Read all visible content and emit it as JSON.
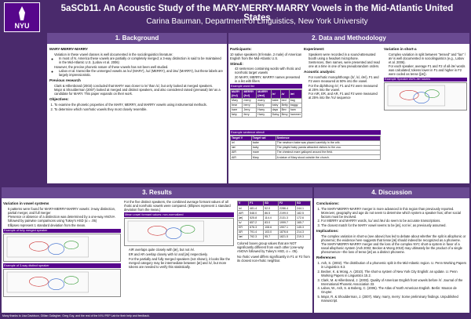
{
  "header": {
    "code": "5aSCb11.",
    "title": "An Acoustic Study of the MARY-MERRY-MARRY Vowels in the Mid-Atlantic United States",
    "author": "Carina Bauman, Department of Linguistics, New York University",
    "logo": "NYU"
  },
  "sections": [
    {
      "title": "1. Background",
      "columns": [
        [
          {
            "heading": "MARY-MERRY-MARRY"
          },
          {
            "items": [
              {
                "text": "Variation in these vowel classes is well documented in the sociolinguistics literature:",
                "sub": [
                  "In most of N. America these vowels are partially or completely merged; a 3-way distinction is said to be maintained in the Mid-Atlantic U.S. (Labov et al. 2006)"
                ]
              },
              {
                "text": "However, the precise phonetic nature of these vowels has not been well studied.",
                "sub": [
                  "Labov et al. transcribe the unmerged vowels as /eɹ/ (MARY), /ɛɹ/ (MERRY), and /æɹ/ (MARRY), but these labels are largely impressionistic."
                ]
              }
            ]
          },
          {
            "heading": "Previous research"
          },
          {
            "items": [
              {
                "text": "Clark & Hillenbrand (2003) concluded that MARY was closer to /e/ than /ɛ/, but only looked at merged speakers."
              },
              {
                "text": "Major & Shoulderman (2007) looked at merged and distinct speakers, and also considered raised (prenasal) /æ/ as a candidate for MARY. This paper expands on their work."
              }
            ]
          },
          {
            "heading": "Objectives:"
          },
          {
            "numbered": [
              "To examine the phonetic properties of the MARY, MERRY, and MARRY vowels using instrumental methods.",
              "To determine which nonrhotic vowels they most closely resemble."
            ]
          }
        ]
      ]
    },
    {
      "title": "2. Data and Methodology",
      "columns": [
        [
          {
            "heading": "Participants:",
            "text": "10 native speakers (8 female, 2 male) of American English from the Mid-Atlantic U.S."
          },
          {
            "heading": "Stimuli:"
          },
          {
            "items": [
              {
                "text": "43 sentences containing words with rhotic and nonrhotic target vowels"
              },
              {
                "text": "20 MARY, MERRY, MARRY names presented in a list with fillers"
              }
            ]
          },
          {
            "table": {
              "caption": "Example word list",
              "header": [
                "MARY (/eɹ/)",
                "MERRY (/ɛɹ/)",
                "MARRY (/æɹ/)",
                "/e/",
                "/ɛ/",
                "/æ/"
              ],
              "rows": [
                [
                  "Mary",
                  "merry",
                  "marry",
                  "babe",
                  "bed",
                  "bag"
                ],
                [
                  "bear",
                  "berry",
                  "Barry",
                  "baby",
                  "Betty",
                  "baggy"
                ],
                [
                  "hare",
                  "Jerry",
                  "Harry",
                  "days",
                  "Bev",
                  "ham"
                ],
                [
                  "fairy",
                  "ferry",
                  "Harry",
                  "Daisy",
                  "Bevy",
                  "hammer"
                ]
              ]
            }
          }
        ],
        [
          {
            "heading": "Experiment:"
          },
          {
            "items": [
              {
                "text": "Speakers were recorded in a sound-attenuated booth using a headset microphone."
              },
              {
                "text": "Sentences, then names, were presented and read one at a time in one of two pseudorandom orders."
              }
            ]
          },
          {
            "heading": "Acoustic analysis:"
          },
          {
            "items": [
              {
                "text": "For nonrhotic monophthongs (/ɪ/, /ɛ/, /æ/), F1 and F2 were measured at 50% into the vowel."
              },
              {
                "text": "For the diphthong /e/, F1 and F2 were measured at 25% into the vowel."
              },
              {
                "text": "For AIR, ER, and AR, F1 and F2 were measured at 25% into the /Vɹ/ sequence"
              }
            ]
          }
        ],
        [
          {
            "heading": "Variation in short-a"
          },
          {
            "items": [
              {
                "text": "Complex variation in split between \"tensed\" and \"lax\" /æ/ is well documented in sociolinguistics (e.g., Labov et al. 2006)."
              },
              {
                "text": "For each speaker, average F1 and F2 of all /æ/ words was calculated; tokens lower in F1 and higher in F2 were coded as tense ([æ])."
              }
            ]
          },
          {
            "figure": "Example Speaker AW's /æ/ tokens"
          }
        ]
      ],
      "wide": [
        {
          "table": {
            "caption": "Example sentence stimuli",
            "header": [
              "Target V",
              "Target wd",
              "Sentence"
            ],
            "rows": [
              [
                "/e/",
                "babe",
                "The newborn babe was placed carefully in the crib."
              ],
              [
                "/æ/",
                "baby",
                "The playful baby panda attracted visitors to the zoo."
              ],
              [
                "AIR",
                "mare",
                "The chestnut mare galloped around the field."
              ],
              [
                "AIR",
                "Mary",
                "A statue of Mary stood outside the church."
              ]
            ]
          }
        }
      ]
    },
    {
      "title": "3. Results",
      "columns": [
        [
          {
            "heading": "Variation in vowel systems"
          },
          {
            "items": [
              {
                "text": "5 patterns were found for MARY-MERRY-MARRY vowels: 3-way distinction, partial merger, and full merger"
              },
              {
                "text": "Presence or absence of a distinction was determined by a one-way ANOVA followed by pairwise comparisons using Tukey's HSD (α = .05)"
              },
              {
                "text": "Ellipses represent 1 standard deviation from the mean."
              }
            ]
          },
          {
            "figure": "Example of fully merged speaker"
          },
          {
            "figure": "Example of 3-way distinct speaker"
          }
        ],
        [
          {
            "text": "For the five distinct speakers, the combined average formant values of all rhotic and nonrhotic vowels were compared. (Ellipses represent 1 standard deviation from the mean.)"
          },
          {
            "figure": "Mean vowel formant values: non-normalized"
          },
          {
            "items": [
              {
                "text": "AIR overlaps quite closely with [æ], but not /e/."
              },
              {
                "text": "ER and AR overlap closely with /ɛ/ and [æ] respectively."
              },
              {
                "text": "For the partially and fully merged speakers (not shown), it looks like the merged category may be intermediate between [æ] and /ɛ/, but more tokens are needed to verify this statistically."
              }
            ]
          }
        ],
        [
          {
            "table": {
              "header": [
                "V",
                "F1",
                "SD",
                "F2",
                "SD"
              ],
              "rows": [
                [
                  "/e/",
                  "481.4",
                  "52.0",
                  "2286.4",
                  "244.1"
                ],
                [
                  "AIR",
                  "548.0",
                  "86.5",
                  "2199.0",
                  "182.5"
                ],
                [
                  "[æ]",
                  "525.8",
                  "114.4",
                  "2131.3",
                  "172.6"
                ],
                [
                  "/ɛ/",
                  "657.2",
                  "83.0",
                  "1999.7",
                  "165.7"
                ],
                [
                  "ER",
                  "676.3",
                  "108.6",
                  "1907.1",
                  "145.3"
                ],
                [
                  "AR",
                  "791.4",
                  "103.0",
                  "1876.6",
                  "214.3"
                ],
                [
                  "/æ/",
                  "792.3",
                  "95.7",
                  "1821.5",
                  "219.3"
                ]
              ]
            }
          },
          {
            "text": "Colored boxes group values that are NOT significantly different from each other (one-way ANOVA followed by Tukey's HSD, α = .05)."
          },
          {
            "text": "No rhotic vowel differs significantly in F1 or F2 from its closest non-rhotic neighbor."
          }
        ]
      ]
    },
    {
      "title": "4. Discussion",
      "columns": [
        [
          {
            "heading": "Conclusions:"
          },
          {
            "numbered": [
              "The MARY-MERRY-MARRY merger is more advanced in this region than previously reported. Moreover, geography and age do not seem to determine which system a speaker has; other social factors must be involved.",
              "For MERRY and MARRY words, /ɛɹ/ and /æɹ/ do seem to be accurate transcriptions.",
              "The closest match for the MARY vowel seems to be [æ], not /e/, as previously assumed."
            ]
          },
          {
            "heading": "Implications:"
          },
          {
            "items": [
              {
                "text": "The complex variation in short-a (see above) has led to debate about whether the split is allophonic or phonemic; the evidence here suggests that tense [æ] should indeed be recognized as a phoneme."
              },
              {
                "text": "The MARY-MERRY-MARRY merger and the loss of the complex NYC short-a system in favor of a nasal allophonic system (Ash 2002; Becker & Wong 2010) may ultimately be the product of a single phenomenon—the loss of tense [æ] as a distinct phoneme."
              }
            ]
          },
          {
            "heading": "References"
          },
          {
            "numbered": [
              "Ash, S. (2002). The distribution of a phonemic split in the Mid-Atlantic region. U. Penn Working Papers in Linguistics 8.3.",
              "Becker, K. & Wong, A. (2010). The short-a system of New York City English: an update. U. Penn Working Papers in Linguistics 15.2.",
              "Clark, M. & Hillenbrand, J. (2003). Quality of American English front vowels before /r/. Journal of the International Phonetic Association 33.",
              "Labov, W., Ash, S. & Boberg, C. (2006). The Atlas of North American English. Berlin: Mouton de Gruyter.",
              "Major, R. & Shoulderman, J. (2007). Mary, marry, merry: Some preliminary findings. Unpublished manuscript."
            ]
          }
        ]
      ]
    }
  ],
  "footer": "Many thanks to Lisa Davidson, Gillian Gallagher, Greg Guy, and the rest of the NYU PEP Lab for their help and feedback."
}
